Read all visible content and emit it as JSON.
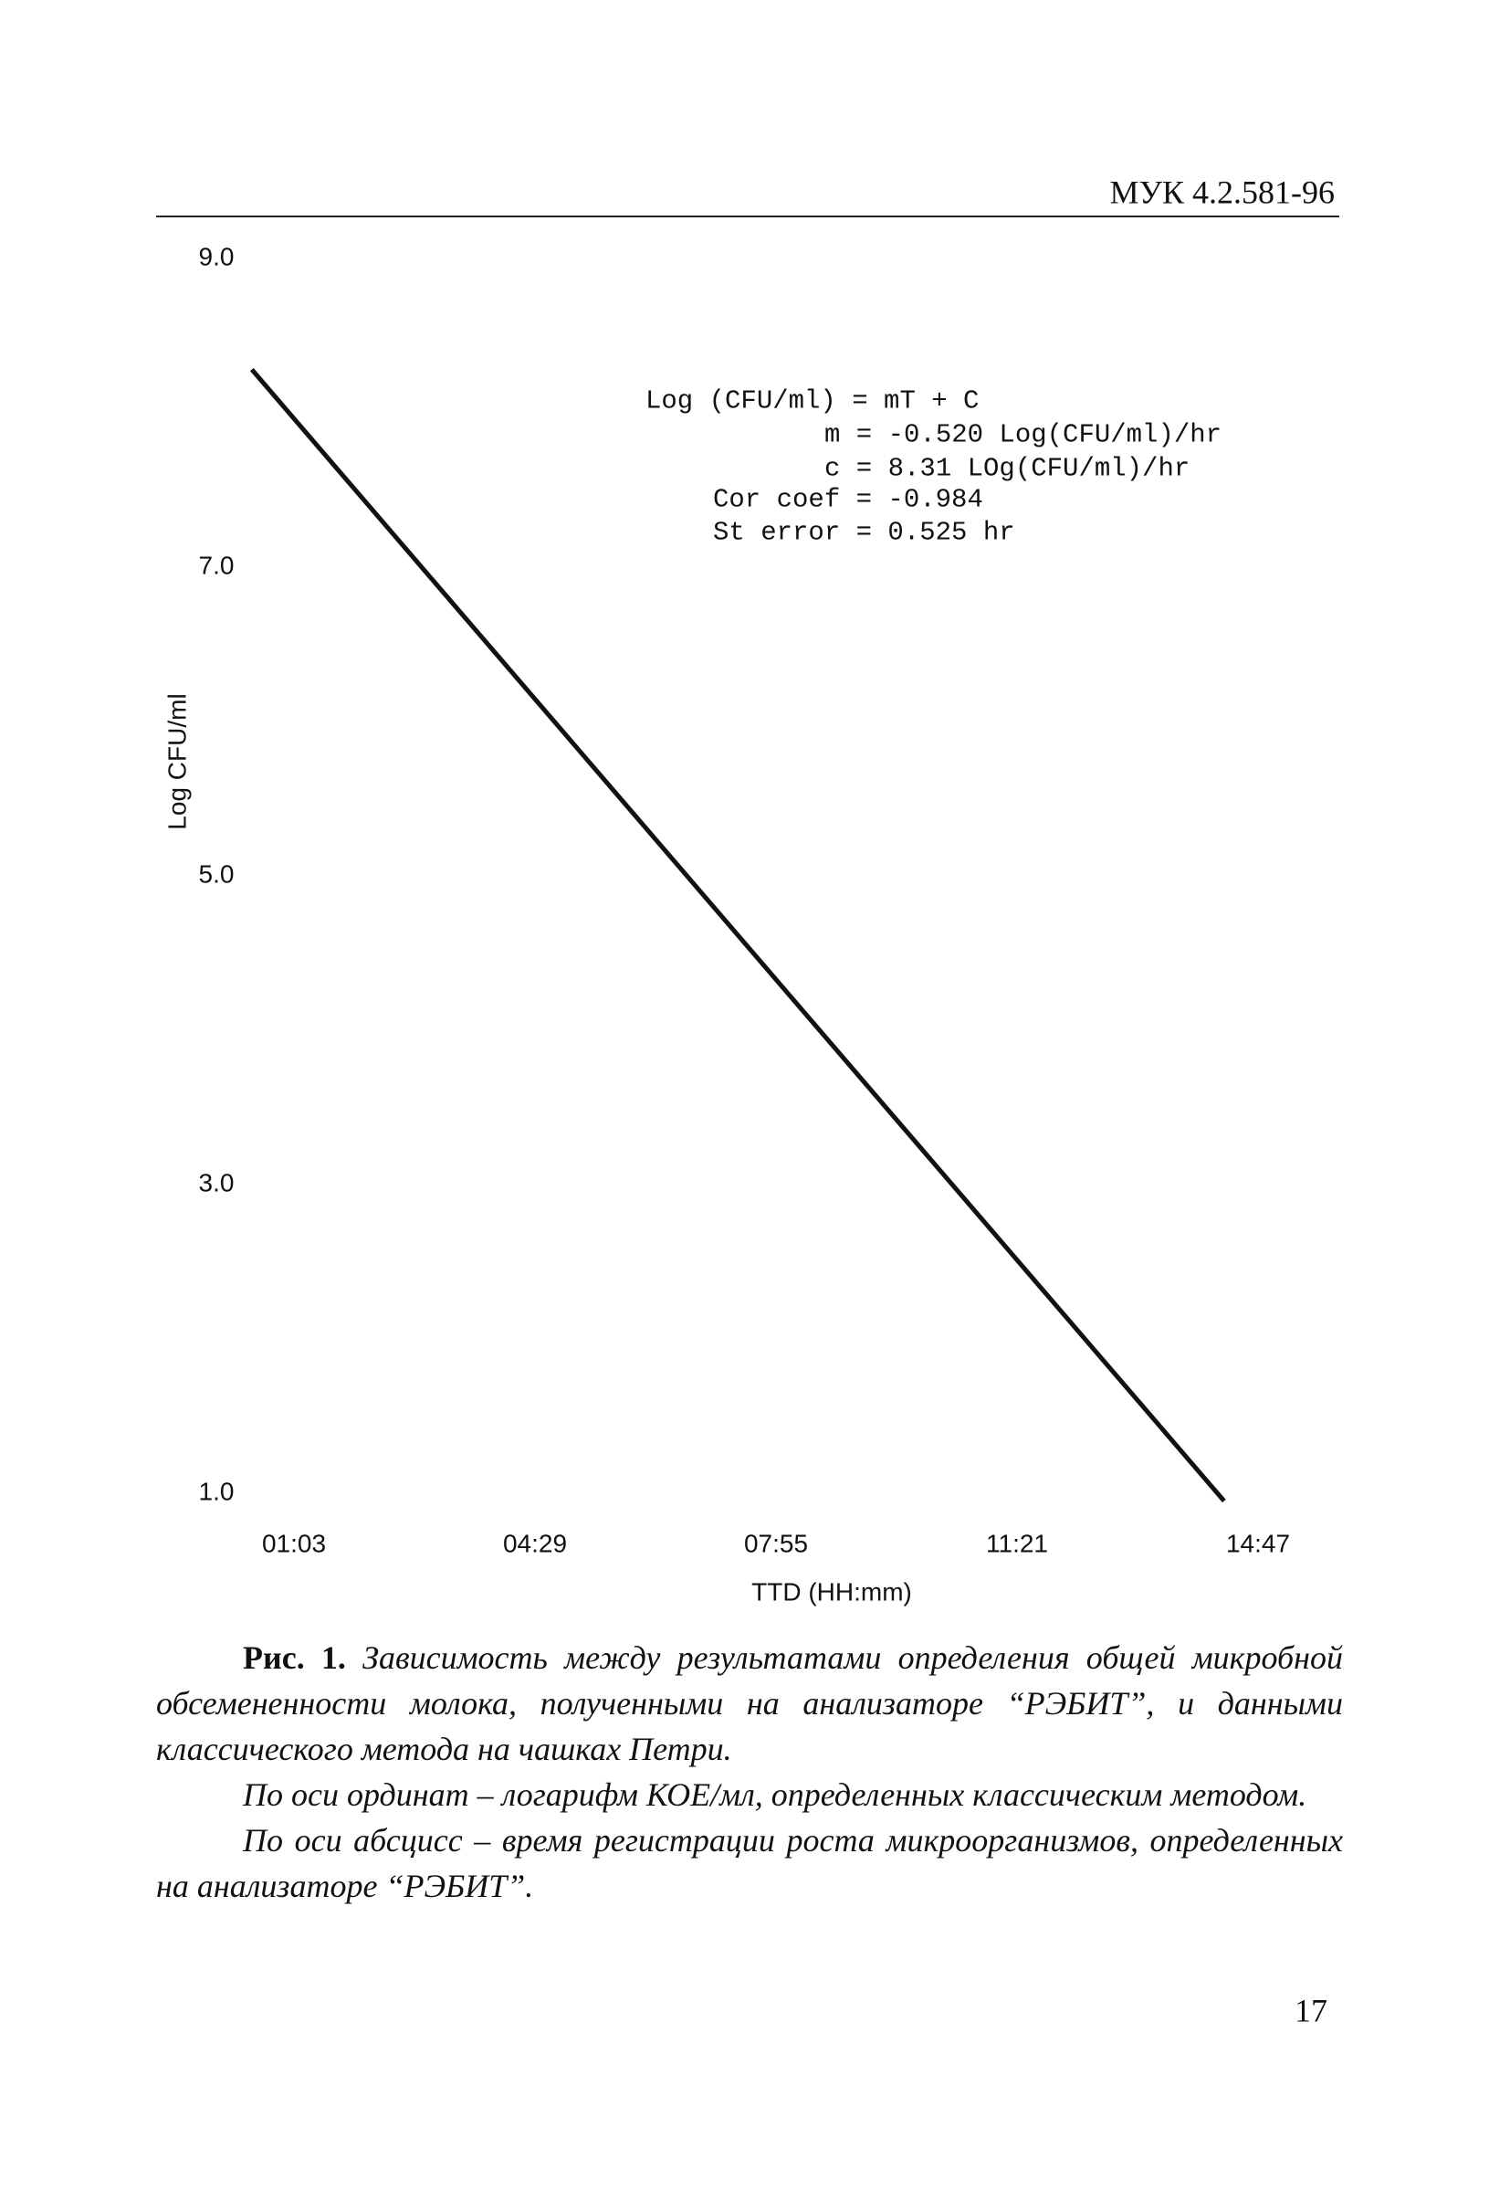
{
  "header": "МУК 4.2.581-96",
  "chart_data": {
    "type": "line",
    "x_label": "TTD (HH:mm)",
    "y_label": "Log CFU/ml",
    "annotations": [
      "Log (CFU/ml) = mT + C",
      "m = -0.520 Log(CFU/ml)/hr",
      "c = 8.31 LOg(CFU/ml)/hr",
      "Cor coef = -0.984",
      "St error = 0.525 hr"
    ],
    "x": [
      0.45,
      14.3
    ],
    "series": [
      {
        "name": "Log (CFU/ml)",
        "color": "#111111",
        "values": [
          8.28,
          0.95
        ]
      }
    ],
    "xlim": [
      1.05,
      14.7833
    ],
    "xticks": [
      {
        "value": 1.05,
        "label": "01:03"
      },
      {
        "value": 4.4833,
        "label": "04:29"
      },
      {
        "value": 7.9167,
        "label": "07:55"
      },
      {
        "value": 11.35,
        "label": "11:21"
      },
      {
        "value": 14.7833,
        "label": "14:47"
      }
    ],
    "ylim": [
      1,
      9
    ],
    "yticks": [
      {
        "value": 1,
        "label": "1.0"
      },
      {
        "value": 3,
        "label": "3.0"
      },
      {
        "value": 5,
        "label": "5.0"
      },
      {
        "value": 7,
        "label": "7.0"
      },
      {
        "value": 9,
        "label": "9.0"
      }
    ],
    "grid": false
  },
  "caption": {
    "label": "Рис. 1.",
    "paragraphs": [
      "Зависимость между результатами определения общей микробной обсемененности молока, полученными на анализаторе “РЭБИТ”, и данными классического метода на чашках Петри.",
      "По оси ординат – логарифм КОЕ/мл, определенных классическим методом.",
      "По оси абсцисс – время регистрации роста микроорганизмов, определенных на анализаторе “РЭБИТ”."
    ]
  },
  "page_number": "17"
}
